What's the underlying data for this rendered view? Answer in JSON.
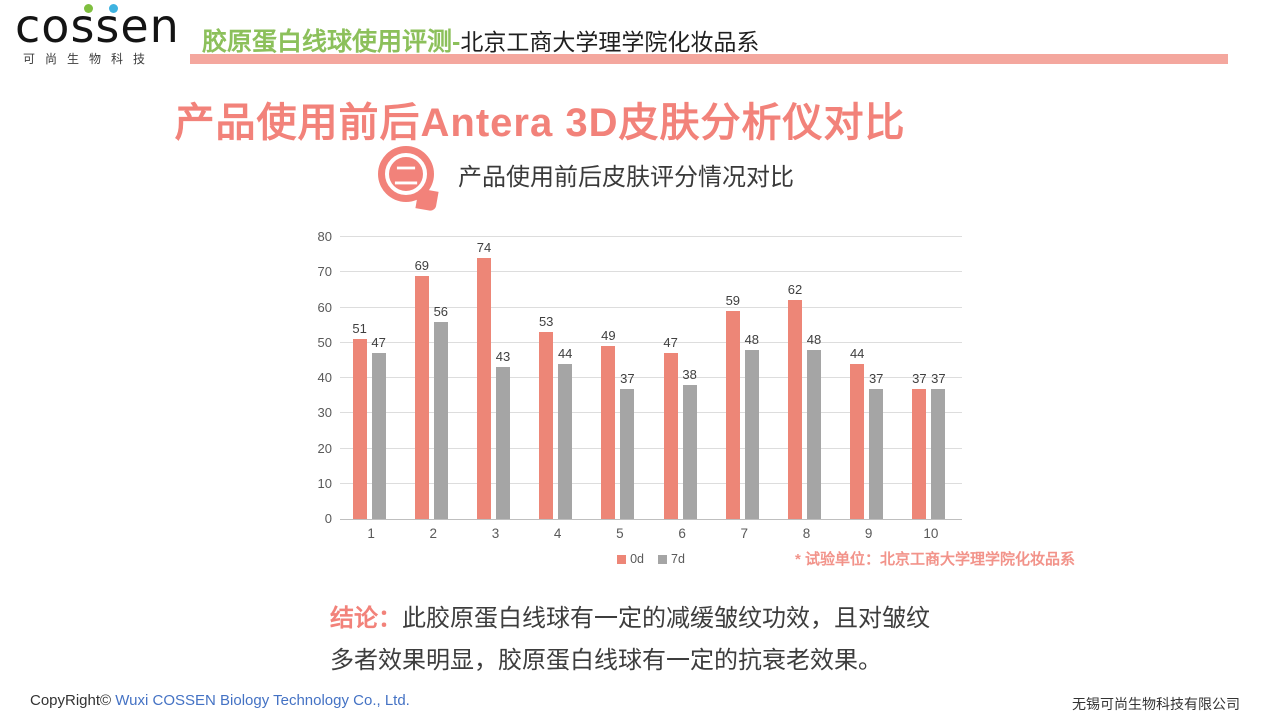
{
  "colors": {
    "accent": "#F2827A",
    "accent-light": "#F4A79E",
    "green": "#8CC05B",
    "link-blue": "#4472C4",
    "note-pink": "#F2938A"
  },
  "logo": {
    "part1": "co",
    "s1": "s",
    "s2": "s",
    "part2": "en",
    "subtext": "可尚生物科技"
  },
  "header": {
    "topic_green": "胶原蛋白线球使用评测-",
    "topic_black": "北京工商大学理学院化妆品系"
  },
  "main": {
    "title": "产品使用前后Antera 3D皮肤分析仪对比",
    "section_number": "二",
    "subtitle": "产品使用前后皮肤评分情况对比"
  },
  "chart_data": {
    "type": "bar",
    "title": "",
    "categories": [
      "1",
      "2",
      "3",
      "4",
      "5",
      "6",
      "7",
      "8",
      "9",
      "10"
    ],
    "series": [
      {
        "name": "0d",
        "color": "#ED8677",
        "values": [
          51,
          69,
          74,
          53,
          49,
          47,
          59,
          62,
          44,
          37
        ]
      },
      {
        "name": "7d",
        "color": "#A5A5A5",
        "values": [
          47,
          56,
          43,
          44,
          37,
          38,
          48,
          48,
          37,
          37
        ]
      }
    ],
    "ylim": [
      0,
      80
    ],
    "ytick_step": 10,
    "grid": true,
    "legend_position": "bottom"
  },
  "note": "* 试验单位：北京工商大学理学院化妆品系",
  "conclusion": {
    "label": "结论：",
    "line1": "此胶原蛋白线球有一定的减缓皱纹功效，且对皱纹",
    "line2": "多者效果明显，胶原蛋白线球有一定的抗衰老效果。"
  },
  "footer": {
    "copyright_prefix": "CopyRight© ",
    "company_en": "Wuxi COSSEN Biology Technology Co., Ltd.",
    "company_cn": "无锡可尚生物科技有限公司"
  }
}
